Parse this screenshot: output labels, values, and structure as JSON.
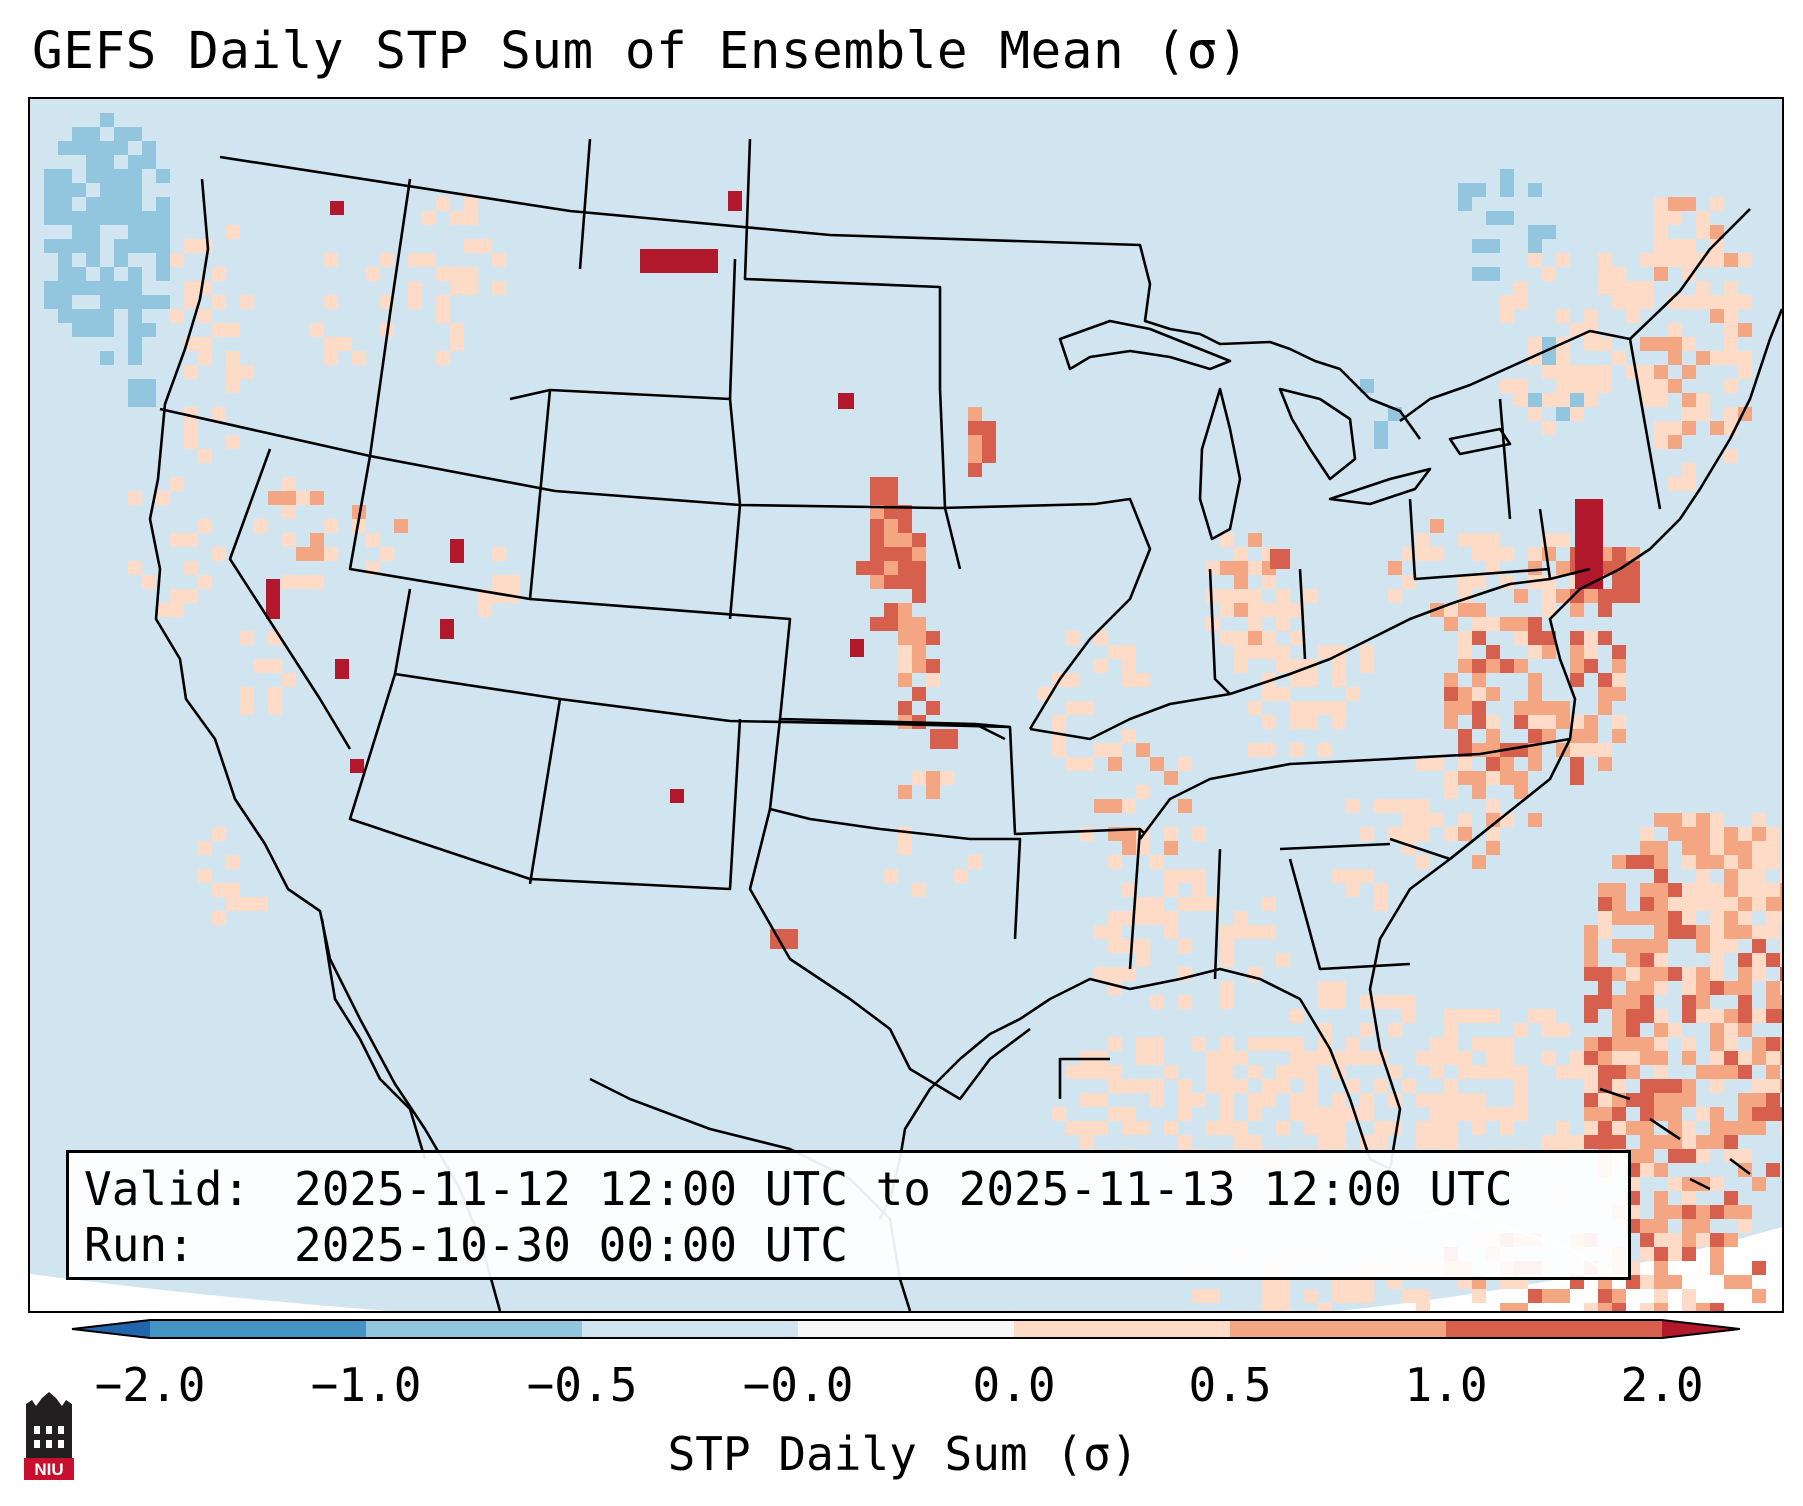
{
  "title": "GEFS Daily STP Sum of Ensemble Mean (σ)",
  "validity": {
    "valid_label": "Valid:",
    "valid_value": "2025-11-12 12:00 UTC to 2025-11-13 12:00 UTC",
    "run_label": "Run:",
    "run_value": "2025-10-30 00:00 UTC"
  },
  "colorbar": {
    "label": "STP Daily Sum (σ)",
    "ticks": [
      "−2.0",
      "−1.0",
      "−0.5",
      "−0.0",
      "0.0",
      "0.5",
      "1.0",
      "2.0"
    ],
    "colors": {
      "under": "#2166ac",
      "bin_-2_-1": "#4393c3",
      "bin_-1_-0.5": "#92c5de",
      "bin_-0.5_0": "#d1e5f0",
      "bin_0_0": "#f7f7f7",
      "bin_0_0.5": "#fddbc7",
      "bin_0.5_1": "#f4a582",
      "bin_1_2": "#d6604d",
      "over": "#b2182b"
    }
  },
  "map": {
    "projection": "Lambert Conformal, CONUS",
    "background_color": "#d1e5f0",
    "outline_color": "#000000"
  },
  "logo": {
    "icon": "university-tower-logo",
    "text": "NIU"
  }
}
